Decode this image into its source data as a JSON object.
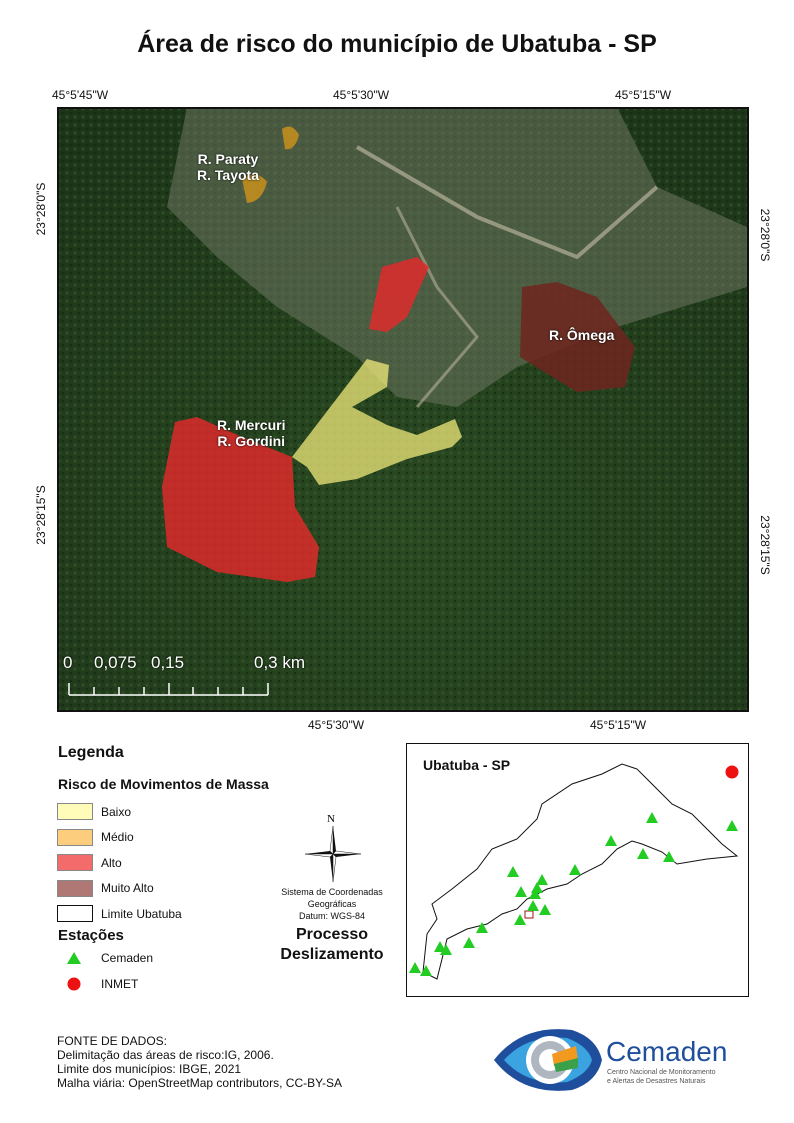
{
  "title": "Área de risco do município de Ubatuba - SP",
  "coords": {
    "top": [
      "45°5'45\"W",
      "45°5'30\"W",
      "45°5'15\"W"
    ],
    "bottom": [
      "45°5'30\"W",
      "45°5'15\"W"
    ],
    "left": [
      "23°28'0\"S",
      "23°28'15\"S"
    ],
    "right": [
      "23°28'0\"S",
      "23°28'15\"S"
    ]
  },
  "map": {
    "areas": [
      {
        "label": "R. Paraty\nR. Tayota",
        "risk": "Médio",
        "color": "#f5b942"
      },
      {
        "label": "",
        "risk": "Alto",
        "color": "#e8282a"
      },
      {
        "label": "R. Ômega",
        "risk": "Muito Alto",
        "color": "#7a2a22"
      },
      {
        "label": "R. Mercuri\nR. Gordini",
        "risk": "Alto",
        "color": "#e8282a"
      },
      {
        "label": "",
        "risk": "Baixo",
        "color": "#f6f08a"
      }
    ],
    "labels": {
      "paraty": "R. Paraty",
      "tayota": "R. Tayota",
      "omega": "R. Ômega",
      "mercuri": "R. Mercuri",
      "gordini": "R. Gordini"
    },
    "scale": {
      "ticks": [
        "0",
        "0,075",
        "0,15",
        "0,3 km"
      ]
    }
  },
  "legend": {
    "title": "Legenda",
    "risk_title": "Risco de Movimentos de Massa",
    "risk_items": [
      {
        "label": "Baixo",
        "color": "#fefcb8"
      },
      {
        "label": "Médio",
        "color": "#fbcd7c"
      },
      {
        "label": "Alto",
        "color": "#f36b6b"
      },
      {
        "label": "Muito Alto",
        "color": "#b07875"
      },
      {
        "label": "Limite Ubatuba",
        "color": "#ffffff"
      }
    ],
    "stations_title": "Estações",
    "stations": [
      {
        "label": "Cemaden",
        "icon": "green-triangle-icon",
        "color": "#22cc22"
      },
      {
        "label": "INMET",
        "icon": "red-circle-icon",
        "color": "#ee1111"
      }
    ]
  },
  "compass": {
    "north": "N",
    "crs_line1": "Sistema de Coordenadas",
    "crs_line2": "Geográficas",
    "datum": "Datum: WGS-84",
    "process1": "Processo",
    "process2": "Deslizamento"
  },
  "inset": {
    "title": "Ubatuba - SP"
  },
  "sources": {
    "heading": "FONTE DE DADOS:",
    "lines": [
      "Delimitação das áreas de risco:IG, 2006.",
      "Limite dos municípios: IBGE, 2021",
      "Malha viária: OpenStreetMap contributors, CC-BY-SA"
    ]
  },
  "logo": {
    "name": "Cemaden",
    "sub1": "Centro Nacional de Monitoramento",
    "sub2": "e Alertas de Desastres Naturais"
  }
}
